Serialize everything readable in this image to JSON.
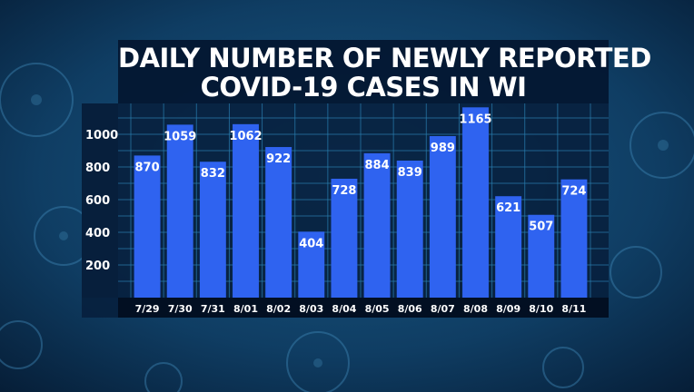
{
  "colors": {
    "bar": "#2f63f0",
    "panel": "#071f3c",
    "grid": "#2a7fb0",
    "text": "#ffffff"
  },
  "title": {
    "line1": "DAILY NUMBER OF NEWLY REPORTED",
    "line2": "COVID-19 CASES IN WI"
  },
  "chart_data": {
    "type": "bar",
    "title": "DAILY NUMBER OF NEWLY REPORTED COVID-19 CASES IN WI",
    "categories": [
      "7/29",
      "7/30",
      "7/31",
      "8/01",
      "8/02",
      "8/03",
      "8/04",
      "8/05",
      "8/06",
      "8/07",
      "8/08",
      "8/09",
      "8/10",
      "8/11"
    ],
    "values": [
      870,
      1059,
      832,
      1062,
      922,
      404,
      728,
      884,
      839,
      989,
      1165,
      621,
      507,
      724
    ],
    "yticks": [
      200,
      400,
      600,
      800,
      1000
    ],
    "ylim": [
      0,
      1200
    ],
    "grid": true,
    "data_labels": true
  }
}
